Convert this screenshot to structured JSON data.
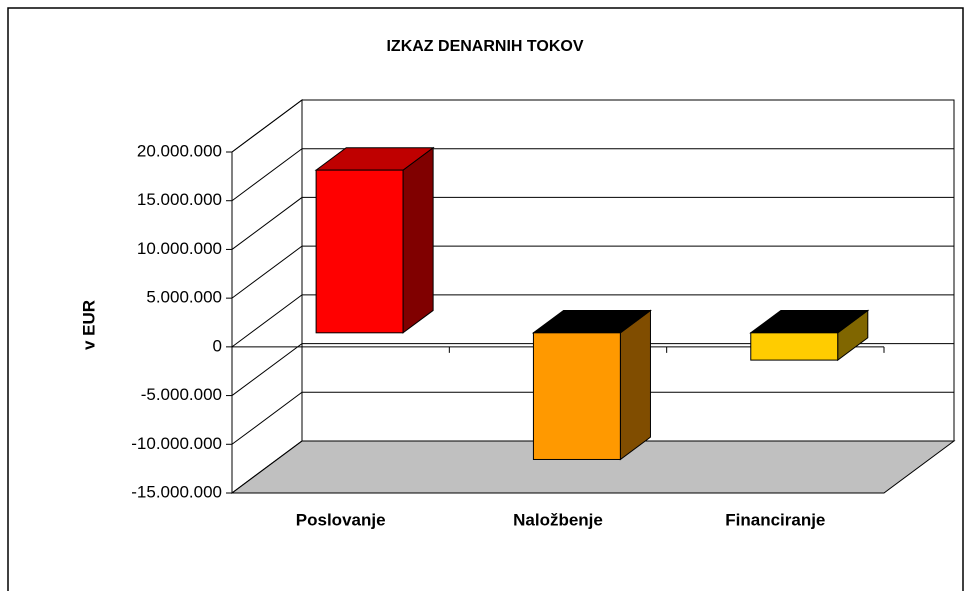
{
  "chart_data": {
    "type": "bar3d",
    "title": "IZKAZ DENARNIH TOKOV",
    "y_label": "v EUR",
    "categories": [
      "Poslovanje",
      "Naložbenje",
      "Financiranje"
    ],
    "values": [
      16700000,
      -13000000,
      -2800000
    ],
    "colors": [
      "#ff0000",
      "#ff9900",
      "#ffcc00"
    ],
    "ylim": [
      -15000000,
      20000000
    ],
    "yticks": [
      {
        "value": 20000000,
        "label": "20.000.000"
      },
      {
        "value": 15000000,
        "label": "15.000.000"
      },
      {
        "value": 10000000,
        "label": "10.000.000"
      },
      {
        "value": 5000000,
        "label": "5.000.000"
      },
      0,
      {
        "value": -5000000,
        "label": "-5.000.000"
      },
      {
        "value": -10000000,
        "label": "-10.000.000"
      },
      {
        "value": -15000000,
        "label": "-15.000.000"
      }
    ],
    "grid": true
  }
}
